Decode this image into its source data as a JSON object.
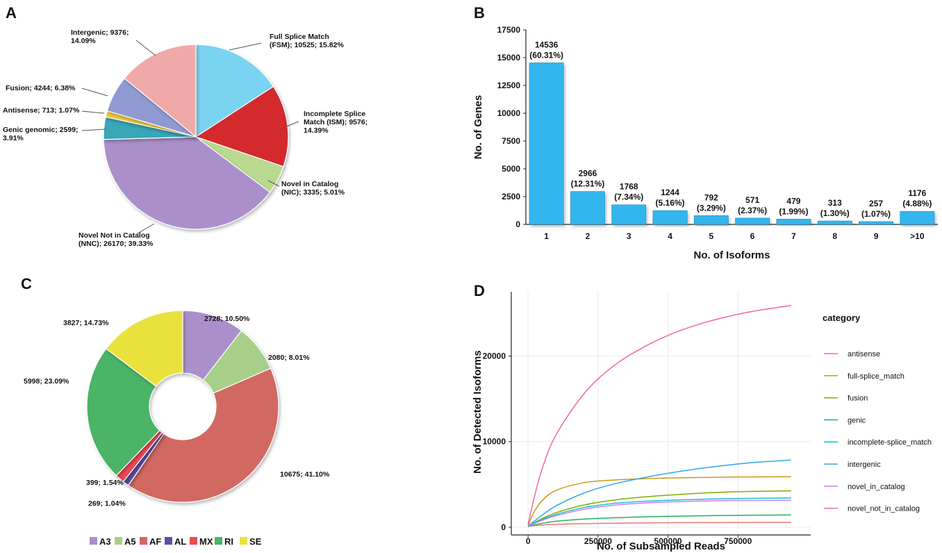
{
  "panel_labels": {
    "A": "A",
    "B": "B",
    "C": "C",
    "D": "D"
  },
  "chart_data": [
    {
      "id": "A",
      "type": "pie",
      "title": "",
      "slices": [
        {
          "name": "Full Splice Match (FSM)",
          "value": 10525,
          "percent": 15.82,
          "color": "#7ad3f0",
          "label": [
            "Full Splice Match",
            "(FSM); 10525;  15.82%"
          ]
        },
        {
          "name": "Incomplete Splice Match (ISM)",
          "value": 9576,
          "percent": 14.39,
          "color": "#d42a2e",
          "label": [
            "Incomplete Splice",
            "Match (ISM); 9576;",
            "14.39%"
          ]
        },
        {
          "name": "Novel in Catalog (NIC)",
          "value": 3335,
          "percent": 5.01,
          "color": "#b8d98e",
          "label": [
            "Novel in Catalog",
            "(NIC); 3335; 5.01%"
          ]
        },
        {
          "name": "Novel Not in Catalog (NNC)",
          "value": 26170,
          "percent": 39.33,
          "color": "#ab8fcb",
          "label": [
            "Novel Not in Catalog",
            "(NNC); 26170;  39.33%"
          ]
        },
        {
          "name": "Genic genomic",
          "value": 2599,
          "percent": 3.91,
          "color": "#39a7b8",
          "label": [
            "Genic genomic; 2599;",
            "3.91%"
          ]
        },
        {
          "name": "Antisense",
          "value": 713,
          "percent": 1.07,
          "color": "#f3c83a",
          "label": [
            "Antisense; 713; 1.07%"
          ]
        },
        {
          "name": "Fusion",
          "value": 4244,
          "percent": 6.38,
          "color": "#909ad2",
          "label": [
            "Fusion; 4244; 6.38%"
          ]
        },
        {
          "name": "Intergenic",
          "value": 9376,
          "percent": 14.09,
          "color": "#f0a9a9",
          "label": [
            "Intergenic; 9376;",
            "14.09%"
          ]
        }
      ]
    },
    {
      "id": "B",
      "type": "bar",
      "title": "",
      "xlabel": "No. of Isoforms",
      "ylabel": "No. of Genes",
      "ylim": [
        0,
        17500
      ],
      "yticks": [
        0,
        2500,
        5000,
        7500,
        10000,
        12500,
        15000,
        17500
      ],
      "categories": [
        "1",
        "2",
        "3",
        "4",
        "5",
        "6",
        "7",
        "8",
        "9",
        ">10"
      ],
      "values": [
        14536,
        2966,
        1768,
        1244,
        792,
        571,
        479,
        313,
        257,
        1176
      ],
      "labels": [
        [
          "14536",
          "(60.31%)"
        ],
        [
          "2966",
          "(12.31%)"
        ],
        [
          "1768",
          "(7.34%)"
        ],
        [
          "1244",
          "(5.16%)"
        ],
        [
          "792",
          "(3.29%)"
        ],
        [
          "571",
          "(2.37%)"
        ],
        [
          "479",
          "(1.99%)"
        ],
        [
          "313",
          "(1.30%)"
        ],
        [
          "257",
          "(1.07%)"
        ],
        [
          "1176",
          "(4.88%)"
        ]
      ],
      "color": "#33b6ee"
    },
    {
      "id": "C",
      "type": "pie",
      "donut": true,
      "slices": [
        {
          "name": "A3",
          "value": 2728,
          "percent": 10.5,
          "color": "#ab8fcb",
          "label": "2728; 10.50%"
        },
        {
          "name": "A5",
          "value": 2080,
          "percent": 8.01,
          "color": "#a8cf8a",
          "label": "2080; 8.01%"
        },
        {
          "name": "AF",
          "value": 10675,
          "percent": 41.1,
          "color": "#d26862",
          "label": "10675; 41.10%"
        },
        {
          "name": "AL",
          "value": 269,
          "percent": 1.04,
          "color": "#5a4ea8",
          "label": "269; 1.04%"
        },
        {
          "name": "MX",
          "value": 399,
          "percent": 1.54,
          "color": "#ee4a55",
          "label": "399; 1.54%"
        },
        {
          "name": "RI",
          "value": 5998,
          "percent": 23.09,
          "color": "#4bb466",
          "label": "5998; 23.09%"
        },
        {
          "name": "SE",
          "value": 3827,
          "percent": 14.73,
          "color": "#e9e23e",
          "label": "3827; 14.73%"
        }
      ],
      "legend": [
        "A3",
        "A5",
        "AF",
        "AL",
        "MX",
        "RI",
        "SE"
      ]
    },
    {
      "id": "D",
      "type": "line",
      "xlabel": "No. of Subsampled Reads",
      "ylabel": "No. of Detected Isoforms",
      "xlim": [
        -60000,
        1010000
      ],
      "ylim": [
        -900,
        27500
      ],
      "xticks": [
        0,
        250000,
        500000,
        750000
      ],
      "xtick_labels": [
        "0",
        "250000",
        "500000",
        "750000"
      ],
      "yticks": [
        0,
        10000,
        20000
      ],
      "ytick_labels": [
        "0",
        "10000",
        "20000"
      ],
      "legend_title": "category",
      "series": [
        {
          "name": "antisense",
          "color": "#f3766e",
          "x": [
            0,
            20000,
            50000,
            100000,
            200000,
            300000,
            400000,
            500000,
            600000,
            700000,
            800000,
            940000
          ],
          "y": [
            100,
            180,
            260,
            340,
            420,
            470,
            500,
            520,
            540,
            555,
            565,
            575
          ]
        },
        {
          "name": "full-splice_match",
          "color": "#cf9710",
          "x": [
            0,
            20000,
            50000,
            100000,
            200000,
            300000,
            400000,
            500000,
            600000,
            700000,
            800000,
            940000
          ],
          "y": [
            200,
            1700,
            3100,
            4300,
            5200,
            5500,
            5650,
            5750,
            5800,
            5850,
            5880,
            5900
          ]
        },
        {
          "name": "fusion",
          "color": "#7cae00",
          "x": [
            0,
            20000,
            50000,
            100000,
            200000,
            300000,
            400000,
            500000,
            600000,
            700000,
            800000,
            940000
          ],
          "y": [
            150,
            500,
            1000,
            1700,
            2600,
            3150,
            3500,
            3750,
            3950,
            4100,
            4180,
            4250
          ]
        },
        {
          "name": "genic",
          "color": "#1fb45b",
          "x": [
            0,
            20000,
            50000,
            100000,
            200000,
            300000,
            400000,
            500000,
            600000,
            700000,
            800000,
            940000
          ],
          "y": [
            80,
            250,
            450,
            700,
            950,
            1100,
            1200,
            1270,
            1330,
            1370,
            1400,
            1430
          ]
        },
        {
          "name": "incomplete-splice_match",
          "color": "#14bfc4",
          "x": [
            0,
            20000,
            50000,
            100000,
            200000,
            300000,
            400000,
            500000,
            600000,
            700000,
            800000,
            940000
          ],
          "y": [
            150,
            450,
            900,
            1500,
            2300,
            2750,
            3000,
            3150,
            3250,
            3320,
            3370,
            3420
          ]
        },
        {
          "name": "intergenic",
          "color": "#31a8e8",
          "x": [
            0,
            20000,
            50000,
            100000,
            200000,
            300000,
            400000,
            500000,
            600000,
            700000,
            800000,
            940000
          ],
          "y": [
            150,
            650,
            1400,
            2500,
            4000,
            5000,
            5700,
            6300,
            6800,
            7200,
            7550,
            7850
          ]
        },
        {
          "name": "novel_in_catalog",
          "color": "#c77cff",
          "x": [
            0,
            20000,
            50000,
            100000,
            200000,
            300000,
            400000,
            500000,
            600000,
            700000,
            800000,
            940000
          ],
          "y": [
            120,
            400,
            800,
            1350,
            2100,
            2550,
            2800,
            2950,
            3050,
            3100,
            3130,
            3150
          ]
        },
        {
          "name": "novel_not_in_catalog",
          "color": "#f066a8",
          "x": [
            0,
            20000,
            50000,
            100000,
            200000,
            300000,
            400000,
            500000,
            600000,
            700000,
            800000,
            940000
          ],
          "y": [
            300,
            3200,
            6800,
            10800,
            15600,
            18700,
            20800,
            22400,
            23600,
            24500,
            25200,
            25900
          ]
        }
      ]
    }
  ]
}
